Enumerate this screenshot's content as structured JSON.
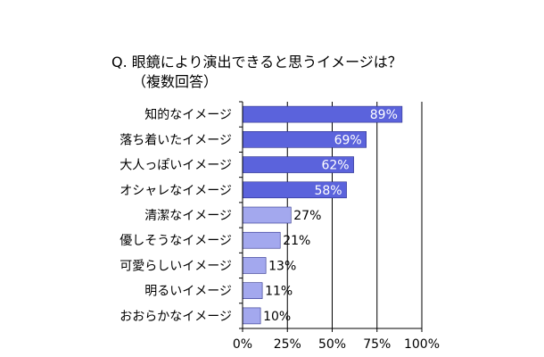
{
  "chart_data": {
    "type": "bar",
    "orientation": "horizontal",
    "title": "Q. 眼鏡により演出できると思うイメージは？",
    "subtitle": "（複数回答）",
    "categories": [
      "知的なイメージ",
      "落ち着いたイメージ",
      "大人っぽいイメージ",
      "オシャレなイメージ",
      "清潔なイメージ",
      "優しそうなイメージ",
      "可愛らしいイメージ",
      "明るいイメージ",
      "おおらかなイメージ"
    ],
    "values": [
      89,
      69,
      62,
      58,
      27,
      21,
      13,
      11,
      10
    ],
    "value_labels": [
      "89%",
      "69%",
      "62%",
      "58%",
      "27%",
      "21%",
      "13%",
      "11%",
      "10%"
    ],
    "xlim": [
      0,
      100
    ],
    "xticks": [
      "0%",
      "25%",
      "50%",
      "75%",
      "100%"
    ],
    "xlabel": "",
    "ylabel": "",
    "grid": "vertical",
    "legend": "none",
    "colors": {
      "dark_bar": "#5b63dc",
      "light_bar": "#a3a8ee",
      "bar_border": "#2b2f8a",
      "dark_label": "#ffffff",
      "light_label": "#000000",
      "axis": "#000000",
      "grid": "#000000"
    },
    "dark_bar_count": 4
  }
}
